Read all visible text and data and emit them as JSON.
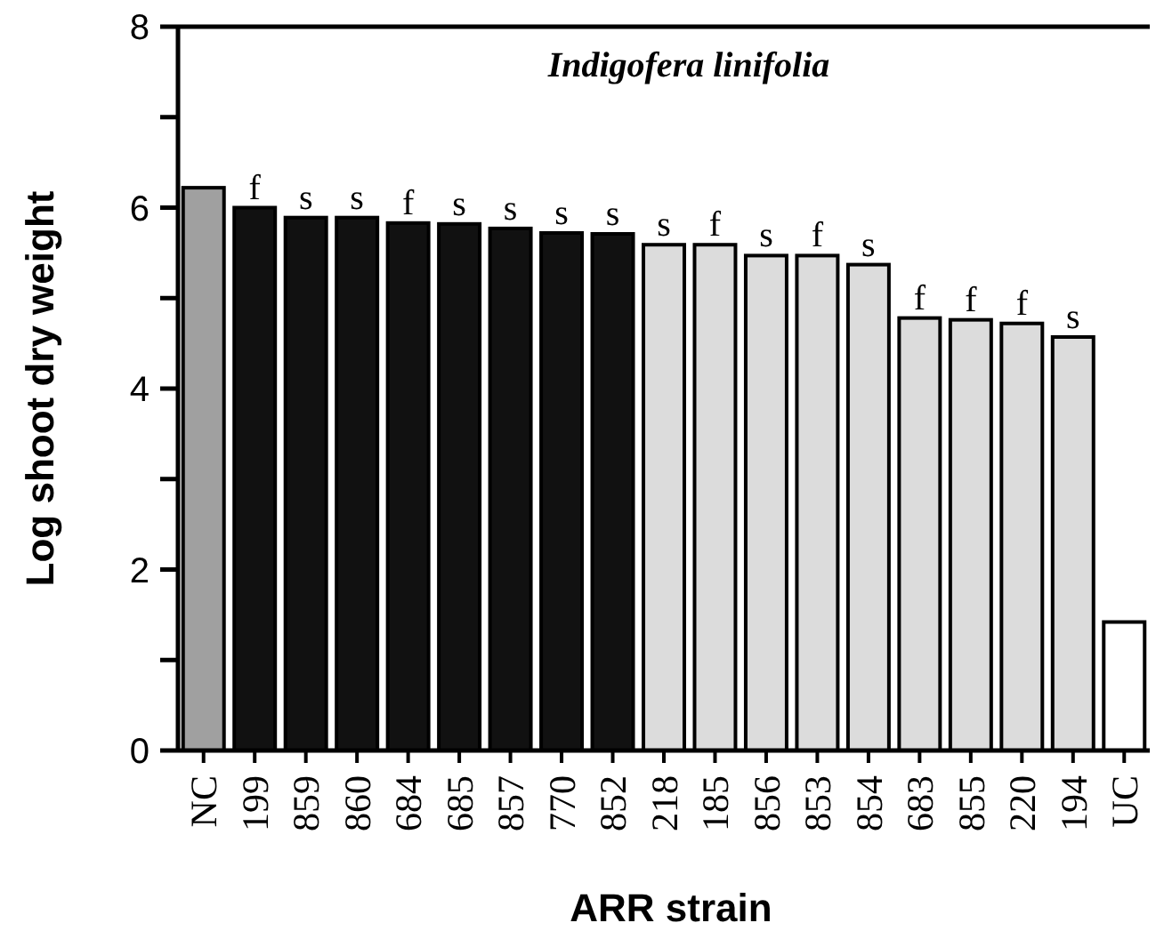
{
  "chart_data": {
    "type": "bar",
    "title": "Indigofera linifolia",
    "xlabel": "ARR strain",
    "ylabel": "Log shoot dry weight",
    "categories": [
      "NC",
      "199",
      "859",
      "860",
      "684",
      "685",
      "857",
      "770",
      "852",
      "218",
      "185",
      "856",
      "853",
      "854",
      "683",
      "855",
      "220",
      "194",
      "UC"
    ],
    "values": [
      6.22,
      6.0,
      5.89,
      5.89,
      5.83,
      5.82,
      5.77,
      5.72,
      5.71,
      5.59,
      5.59,
      5.47,
      5.47,
      5.37,
      4.78,
      4.76,
      4.72,
      4.57,
      1.42
    ],
    "colors": [
      "#a0a0a0",
      "#111111",
      "#111111",
      "#111111",
      "#111111",
      "#111111",
      "#111111",
      "#111111",
      "#111111",
      "#dcdcdc",
      "#dcdcdc",
      "#dcdcdc",
      "#dcdcdc",
      "#dcdcdc",
      "#dcdcdc",
      "#dcdcdc",
      "#dcdcdc",
      "#dcdcdc",
      "#ffffff"
    ],
    "ylim": [
      0,
      8
    ],
    "yticks": [
      0,
      {
        "value": 1,
        "label": null
      },
      2,
      {
        "value": 3,
        "label": null
      },
      4,
      {
        "value": 5,
        "label": null
      },
      6,
      {
        "value": 7,
        "label": null
      },
      8
    ],
    "grid": false,
    "annotations": [
      {
        "text": "f",
        "x": "199",
        "y": 6.0
      },
      {
        "text": "s",
        "x": "859",
        "y": 5.89
      },
      {
        "text": "s",
        "x": "860",
        "y": 5.89
      },
      {
        "text": "f",
        "x": "684",
        "y": 5.83
      },
      {
        "text": "s",
        "x": "685",
        "y": 5.82
      },
      {
        "text": "s",
        "x": "857",
        "y": 5.77
      },
      {
        "text": "s",
        "x": "770",
        "y": 5.72
      },
      {
        "text": "s",
        "x": "852",
        "y": 5.71
      },
      {
        "text": "s",
        "x": "218",
        "y": 5.59
      },
      {
        "text": "f",
        "x": "185",
        "y": 5.59
      },
      {
        "text": "s",
        "x": "856",
        "y": 5.47
      },
      {
        "text": "f",
        "x": "853",
        "y": 5.47
      },
      {
        "text": "s",
        "x": "854",
        "y": 5.37
      },
      {
        "text": "f",
        "x": "683",
        "y": 4.78
      },
      {
        "text": "f",
        "x": "855",
        "y": 4.76
      },
      {
        "text": "f",
        "x": "220",
        "y": 4.72
      },
      {
        "text": "s",
        "x": "194",
        "y": 4.57
      }
    ]
  }
}
